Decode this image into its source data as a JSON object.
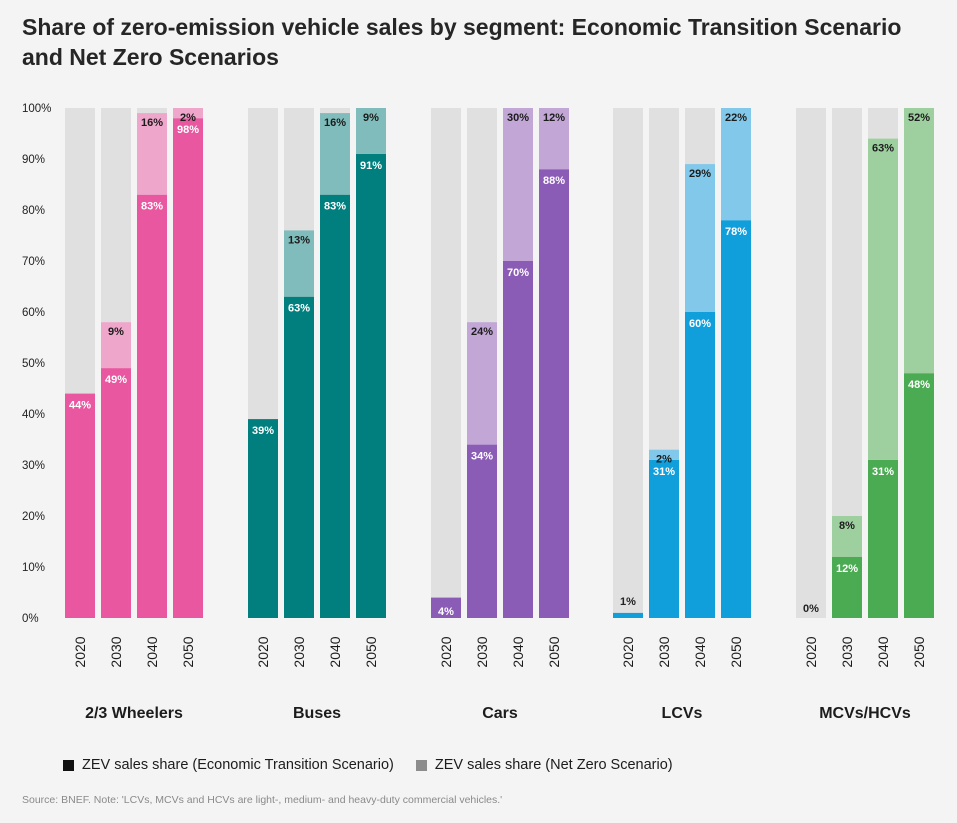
{
  "title": "Share of zero-emission vehicle sales by segment: Economic Transition Scenario and Net Zero Scenarios",
  "legend": {
    "ets_label": "ZEV sales share (Economic Transition Scenario)",
    "nzs_label": "ZEV sales share (Net Zero Scenario)",
    "ets_color": "#111111",
    "nzs_color": "#8c8c8c"
  },
  "source": "Source: BNEF. Note: 'LCVs, MCVs and HCVs are light-, medium- and heavy-duty commercial vehicles.'",
  "chart_data": {
    "type": "bar",
    "stacked": true,
    "ylim": [
      0,
      100
    ],
    "y_ticks": [
      "0%",
      "10%",
      "20%",
      "30%",
      "40%",
      "50%",
      "60%",
      "70%",
      "80%",
      "90%",
      "100%"
    ],
    "grid": false,
    "legend_position": "bottom-left",
    "years": [
      "2020",
      "2030",
      "2040",
      "2050"
    ],
    "background_color": "#e0e0e0",
    "segments": [
      {
        "name": "2/3 Wheelers",
        "ets_color": "#e8579f",
        "nzs_color": "#efa6cb",
        "ets": [
          44,
          49,
          83,
          98
        ],
        "nzs": [
          null,
          9,
          16,
          2
        ],
        "ets_labels": [
          "44%",
          "49%",
          "83%",
          "98%"
        ],
        "nzs_labels": [
          "",
          "9%",
          "16%",
          "2%"
        ]
      },
      {
        "name": "Buses",
        "ets_color": "#017f7e",
        "nzs_color": "#7fbcbb",
        "ets": [
          39,
          63,
          83,
          91
        ],
        "nzs": [
          null,
          13,
          16,
          9
        ],
        "ets_labels": [
          "39%",
          "63%",
          "83%",
          "91%"
        ],
        "nzs_labels": [
          "",
          "13%",
          "16%",
          "9%"
        ]
      },
      {
        "name": "Cars",
        "ets_color": "#8b5cb6",
        "nzs_color": "#c1a6d6",
        "ets": [
          4,
          34,
          70,
          88
        ],
        "nzs": [
          null,
          24,
          30,
          12
        ],
        "ets_labels": [
          "4%",
          "34%",
          "70%",
          "88%"
        ],
        "nzs_labels": [
          "",
          "24%",
          "30%",
          "12%"
        ]
      },
      {
        "name": "LCVs",
        "ets_color": "#119fdc",
        "nzs_color": "#82c8ea",
        "ets": [
          1,
          31,
          60,
          78
        ],
        "nzs": [
          null,
          2,
          29,
          22
        ],
        "ets_labels": [
          "1%",
          "31%",
          "60%",
          "78%"
        ],
        "nzs_labels": [
          "",
          "2%",
          "29%",
          "22%"
        ]
      },
      {
        "name": "MCVs/HCVs",
        "ets_color": "#4aab52",
        "nzs_color": "#9ed09f",
        "ets": [
          0,
          12,
          31,
          48
        ],
        "nzs": [
          null,
          8,
          63,
          52
        ],
        "ets_labels": [
          "0%",
          "12%",
          "31%",
          "48%"
        ],
        "nzs_labels": [
          "",
          "8%",
          "63%",
          "52%"
        ]
      }
    ]
  }
}
